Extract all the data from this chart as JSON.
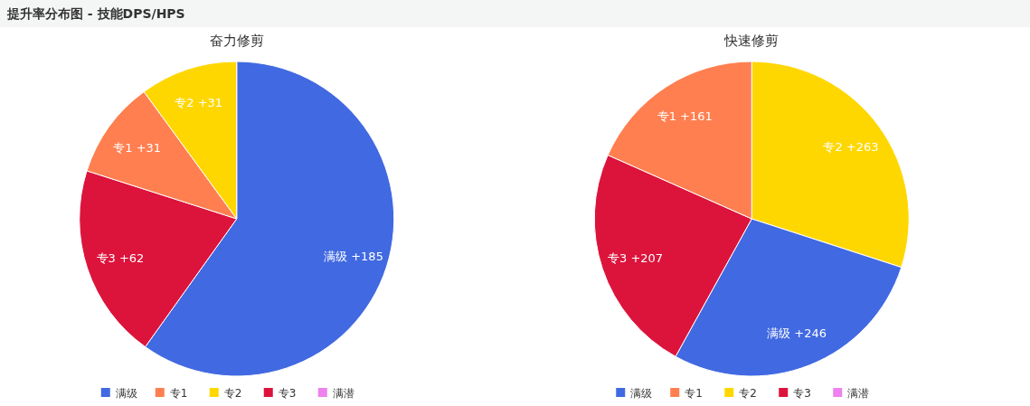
{
  "chart_data": [
    {
      "type": "pie",
      "title": "奋力修剪",
      "annotations": [
        "提升率分布图 - 技能DPS/HPS"
      ],
      "categories": [
        "满级",
        "专1",
        "专2",
        "专3",
        "满潜"
      ],
      "values": [
        185,
        31,
        31,
        62,
        0
      ],
      "colors": [
        "#4169e1",
        "#ff7f50",
        "#ffd700",
        "#dc143c",
        "#ee82ee"
      ],
      "value_labels": [
        "满级 +185",
        "专1 +31",
        "专2 +31",
        "专3 +62",
        null
      ],
      "legend": "bottom"
    },
    {
      "type": "pie",
      "title": "快速修剪",
      "categories": [
        "满级",
        "专1",
        "专2",
        "专3",
        "满潜"
      ],
      "values": [
        246,
        161,
        263,
        207,
        0
      ],
      "colors": [
        "#4169e1",
        "#ff7f50",
        "#ffd700",
        "#dc143c",
        "#ee82ee"
      ],
      "value_labels": [
        "满级 +246",
        "专1 +161",
        "专2 +263",
        "专3 +207",
        null
      ],
      "legend": "bottom"
    }
  ]
}
